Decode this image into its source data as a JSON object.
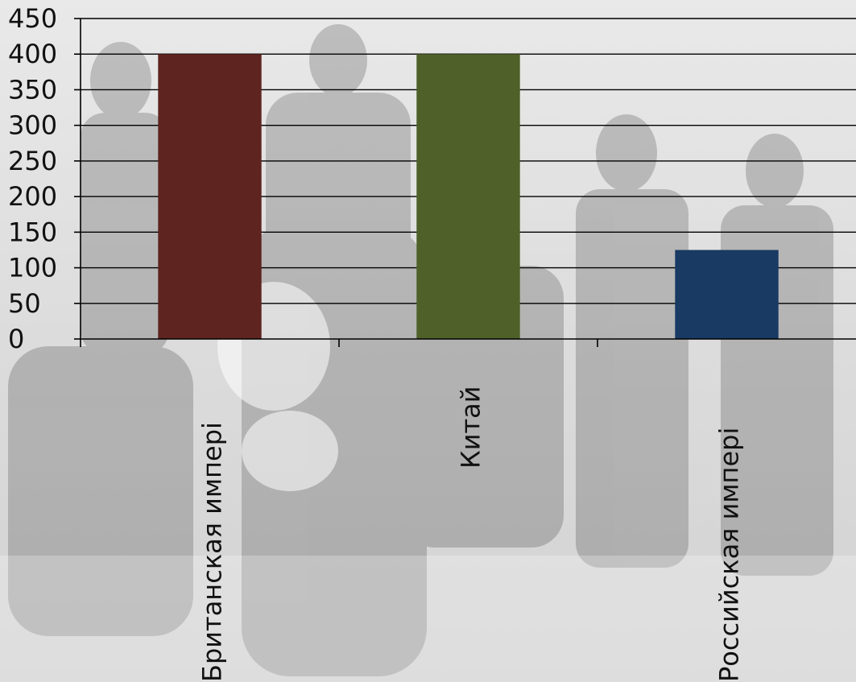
{
  "chart_data": {
    "type": "bar",
    "categories": [
      "Британская импері",
      "Китай",
      "Российская импері"
    ],
    "values": [
      400,
      400,
      125
    ],
    "colors": [
      "#5e2420",
      "#4f6029",
      "#183a63"
    ],
    "ylim": [
      0,
      450
    ],
    "yticks": [
      0,
      50,
      100,
      150,
      200,
      250,
      300,
      350,
      400,
      450
    ],
    "ytick_labels": [
      "0",
      "50",
      "100",
      "150",
      "200",
      "250",
      "300",
      "350",
      "400",
      "450"
    ],
    "grid": true,
    "title": "",
    "xlabel": "",
    "ylabel": "",
    "background": "faded black-and-white family photograph"
  }
}
